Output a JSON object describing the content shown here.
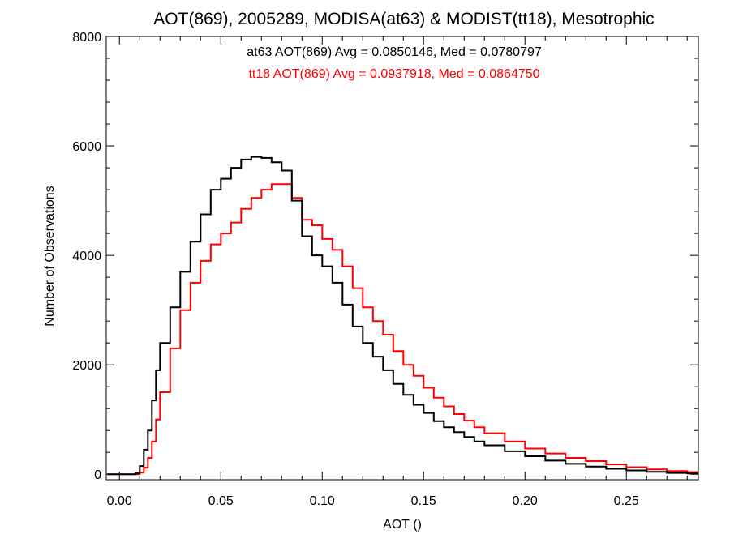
{
  "chart_data": {
    "type": "line",
    "step": true,
    "title": "AOT(869), 2005289, MODISA(at63) & MODIST(tt18), Mesotrophic",
    "xlabel": "AOT ()",
    "ylabel": "Number of Observations",
    "xlim": [
      -0.0065,
      0.2855
    ],
    "ylim": [
      -100,
      8000
    ],
    "xticks": [
      0.0,
      0.05,
      0.1,
      0.15,
      0.2,
      0.25
    ],
    "xtick_labels": [
      "0.00",
      "0.05",
      "0.10",
      "0.15",
      "0.20",
      "0.25"
    ],
    "yticks": [
      0,
      2000,
      4000,
      6000,
      8000
    ],
    "ytick_labels": [
      "0",
      "2000",
      "4000",
      "6000",
      "8000"
    ],
    "grid": false,
    "annotations": [
      {
        "text": "at63 AOT(869) Avg = 0.0850146, Med = 0.0780797",
        "color": "#000000"
      },
      {
        "text": "tt18 AOT(869) Avg = 0.0937918, Med = 0.0864750",
        "color": "#ff0000"
      }
    ],
    "series": [
      {
        "color": "#000000",
        "x": [
          -0.006,
          0.0,
          0.004,
          0.008,
          0.01,
          0.012,
          0.014,
          0.016,
          0.018,
          0.02,
          0.025,
          0.03,
          0.035,
          0.04,
          0.045,
          0.05,
          0.055,
          0.06,
          0.065,
          0.07,
          0.075,
          0.08,
          0.085,
          0.09,
          0.095,
          0.1,
          0.105,
          0.11,
          0.115,
          0.12,
          0.125,
          0.13,
          0.135,
          0.14,
          0.145,
          0.15,
          0.155,
          0.16,
          0.165,
          0.17,
          0.175,
          0.18,
          0.19,
          0.2,
          0.21,
          0.22,
          0.23,
          0.24,
          0.25,
          0.26,
          0.27,
          0.28,
          0.285
        ],
        "y": [
          0,
          0,
          0,
          20,
          150,
          450,
          800,
          1350,
          1900,
          2400,
          3050,
          3700,
          4250,
          4750,
          5200,
          5400,
          5600,
          5750,
          5800,
          5780,
          5700,
          5550,
          5000,
          4350,
          4000,
          3800,
          3500,
          3100,
          2700,
          2400,
          2150,
          1900,
          1650,
          1450,
          1270,
          1120,
          970,
          860,
          770,
          680,
          600,
          530,
          420,
          330,
          250,
          190,
          140,
          100,
          70,
          45,
          25,
          15,
          10
        ]
      },
      {
        "color": "#ff0000",
        "x": [
          -0.006,
          0.0,
          0.006,
          0.01,
          0.012,
          0.014,
          0.016,
          0.018,
          0.02,
          0.025,
          0.03,
          0.035,
          0.04,
          0.045,
          0.05,
          0.055,
          0.06,
          0.065,
          0.07,
          0.075,
          0.08,
          0.085,
          0.09,
          0.095,
          0.1,
          0.105,
          0.11,
          0.115,
          0.12,
          0.125,
          0.13,
          0.135,
          0.14,
          0.145,
          0.15,
          0.155,
          0.16,
          0.165,
          0.17,
          0.175,
          0.18,
          0.19,
          0.2,
          0.21,
          0.22,
          0.23,
          0.24,
          0.25,
          0.26,
          0.27,
          0.28,
          0.285
        ],
        "y": [
          0,
          0,
          0,
          30,
          120,
          300,
          600,
          1000,
          1500,
          2300,
          3000,
          3500,
          3900,
          4200,
          4400,
          4600,
          4850,
          5050,
          5200,
          5300,
          5300,
          5050,
          4650,
          4550,
          4300,
          4100,
          3800,
          3400,
          3050,
          2800,
          2550,
          2250,
          2000,
          1800,
          1580,
          1400,
          1240,
          1100,
          980,
          860,
          750,
          600,
          470,
          380,
          300,
          240,
          180,
          130,
          90,
          60,
          40,
          25
        ]
      }
    ]
  }
}
